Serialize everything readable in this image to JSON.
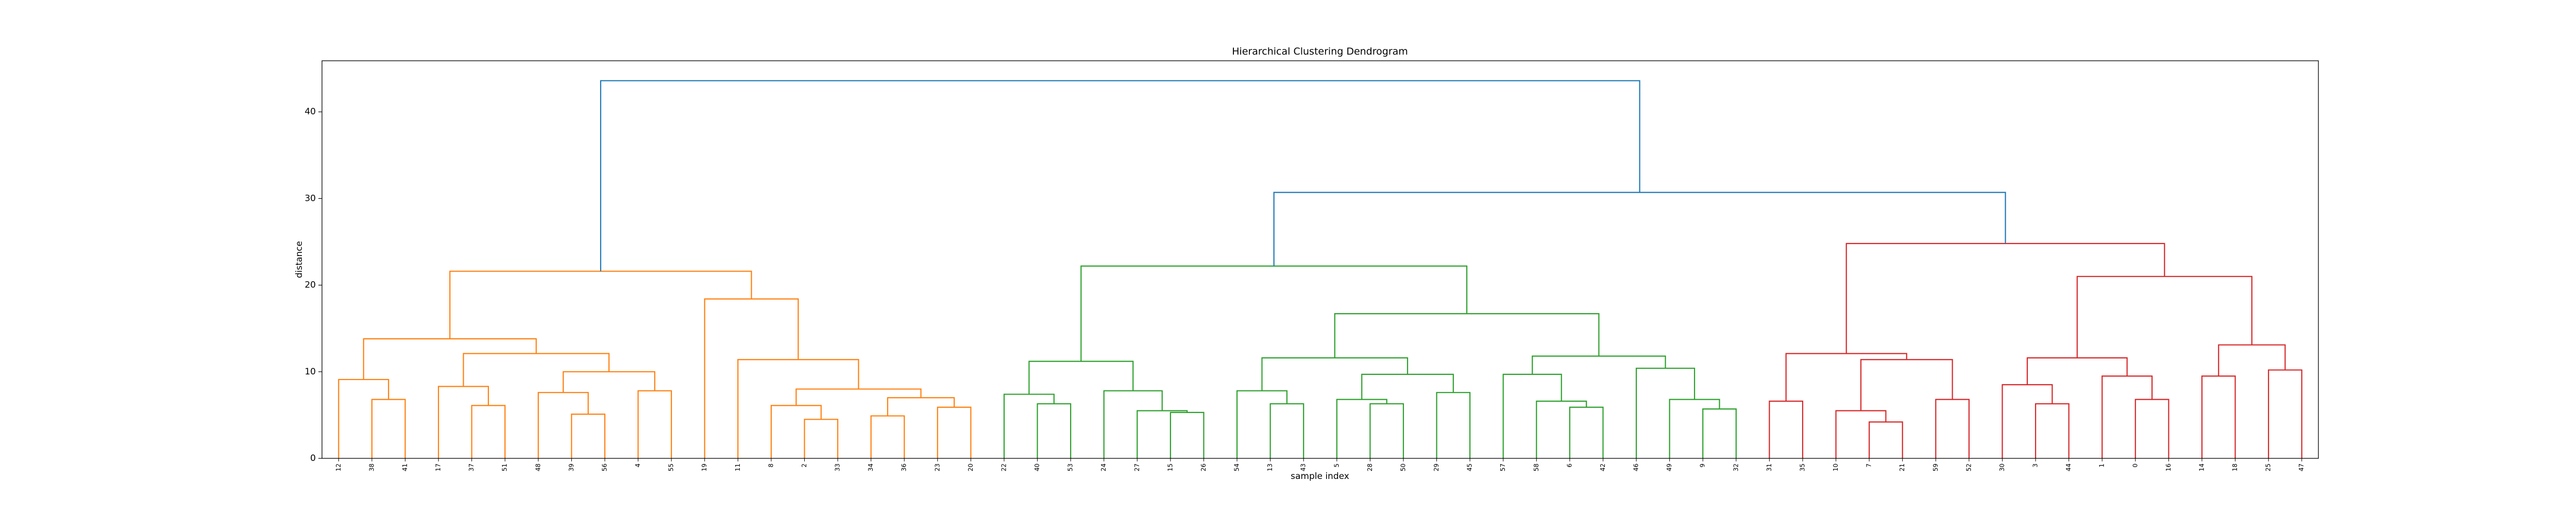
{
  "chart_data": {
    "type": "dendrogram",
    "title": "Hierarchical Clustering Dendrogram",
    "xlabel": "sample index",
    "ylabel": "distance",
    "ylim": [
      0,
      45.9
    ],
    "yticks": [
      0,
      10,
      20,
      30,
      40
    ],
    "grid": false,
    "tree": {
      "height": 43.6,
      "color": "#1f77b4",
      "children": [
        {
          "height": 21.6,
          "color": "#ff7f0e",
          "children": [
            {
              "height": 13.8,
              "children": [
                {
                  "height": 9.1,
                  "children": [
                    "12",
                    {
                      "height": 6.8,
                      "children": [
                        "38",
                        "41"
                      ]
                    }
                  ]
                },
                {
                  "height": 12.1,
                  "children": [
                    {
                      "height": 8.3,
                      "children": [
                        "17",
                        {
                          "height": 6.1,
                          "children": [
                            "37",
                            "51"
                          ]
                        }
                      ]
                    },
                    {
                      "height": 10.0,
                      "children": [
                        {
                          "height": 7.6,
                          "children": [
                            "48",
                            {
                              "height": 5.1,
                              "children": [
                                "39",
                                "56"
                              ]
                            }
                          ]
                        },
                        {
                          "height": 7.8,
                          "children": [
                            "4",
                            "55"
                          ]
                        }
                      ]
                    }
                  ]
                }
              ]
            },
            {
              "height": 18.4,
              "children": [
                "19",
                {
                  "height": 11.4,
                  "children": [
                    "11",
                    {
                      "height": 8.0,
                      "children": [
                        {
                          "height": 6.1,
                          "children": [
                            "8",
                            {
                              "height": 4.5,
                              "children": [
                                "2",
                                "33"
                              ]
                            }
                          ]
                        },
                        {
                          "height": 7.0,
                          "children": [
                            {
                              "height": 4.9,
                              "children": [
                                "34",
                                "36"
                              ]
                            },
                            {
                              "height": 5.9,
                              "children": [
                                "23",
                                "20"
                              ]
                            }
                          ]
                        }
                      ]
                    }
                  ]
                }
              ]
            }
          ]
        },
        {
          "height": 30.7,
          "color": "#1f77b4",
          "children": [
            {
              "height": 22.2,
              "color": "#2ca02c",
              "children": [
                {
                  "height": 11.2,
                  "children": [
                    {
                      "height": 7.4,
                      "children": [
                        "22",
                        {
                          "height": 6.3,
                          "children": [
                            "40",
                            "53"
                          ]
                        }
                      ]
                    },
                    {
                      "height": 7.8,
                      "children": [
                        "24",
                        {
                          "height": 5.5,
                          "children": [
                            "27",
                            {
                              "height": 5.3,
                              "children": [
                                "15",
                                "26"
                              ]
                            }
                          ]
                        }
                      ]
                    }
                  ]
                },
                {
                  "height": 16.7,
                  "children": [
                    {
                      "height": 11.6,
                      "children": [
                        {
                          "height": 7.8,
                          "children": [
                            "54",
                            {
                              "height": 6.3,
                              "children": [
                                "13",
                                "43"
                              ]
                            }
                          ]
                        },
                        {
                          "height": 9.7,
                          "children": [
                            {
                              "height": 6.8,
                              "children": [
                                "5",
                                {
                                  "height": 6.3,
                                  "children": [
                                    "28",
                                    "50"
                                  ]
                                }
                              ]
                            },
                            {
                              "height": 7.6,
                              "children": [
                                "29",
                                "45"
                              ]
                            }
                          ]
                        }
                      ]
                    },
                    {
                      "height": 11.8,
                      "children": [
                        {
                          "height": 9.7,
                          "children": [
                            "57",
                            {
                              "height": 6.6,
                              "children": [
                                "58",
                                {
                                  "height": 5.9,
                                  "children": [
                                    "6",
                                    "42"
                                  ]
                                }
                              ]
                            }
                          ]
                        },
                        {
                          "height": 10.4,
                          "children": [
                            "46",
                            {
                              "height": 6.8,
                              "children": [
                                "49",
                                {
                                  "height": 5.7,
                                  "children": [
                                    "9",
                                    "32"
                                  ]
                                }
                              ]
                            }
                          ]
                        }
                      ]
                    }
                  ]
                }
              ]
            },
            {
              "height": 24.8,
              "color": "#d62728",
              "children": [
                {
                  "height": 12.1,
                  "children": [
                    {
                      "height": 6.6,
                      "children": [
                        "31",
                        "35"
                      ]
                    },
                    {
                      "height": 11.4,
                      "children": [
                        {
                          "height": 5.5,
                          "children": [
                            "10",
                            {
                              "height": 4.2,
                              "children": [
                                "7",
                                "21"
                              ]
                            }
                          ]
                        },
                        {
                          "height": 6.8,
                          "children": [
                            "59",
                            "52"
                          ]
                        }
                      ]
                    }
                  ]
                },
                {
                  "height": 21.0,
                  "children": [
                    {
                      "height": 11.6,
                      "children": [
                        {
                          "height": 8.5,
                          "children": [
                            "30",
                            {
                              "height": 6.3,
                              "children": [
                                "3",
                                "44"
                              ]
                            }
                          ]
                        },
                        {
                          "height": 9.5,
                          "children": [
                            "1",
                            {
                              "height": 6.8,
                              "children": [
                                "0",
                                "16"
                              ]
                            }
                          ]
                        }
                      ]
                    },
                    {
                      "height": 13.1,
                      "children": [
                        {
                          "height": 9.5,
                          "children": [
                            "14",
                            "18"
                          ]
                        },
                        {
                          "height": 10.2,
                          "children": [
                            "25",
                            "47"
                          ]
                        }
                      ]
                    }
                  ]
                }
              ]
            }
          ]
        }
      ]
    }
  }
}
